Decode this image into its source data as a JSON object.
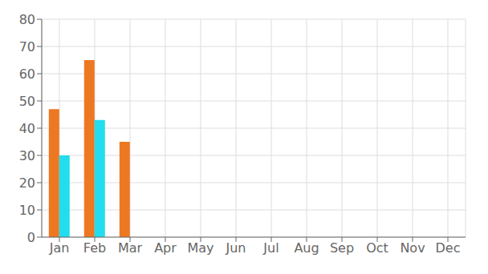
{
  "chart_data": {
    "type": "bar",
    "categories": [
      "Jan",
      "Feb",
      "Mar",
      "Apr",
      "May",
      "Jun",
      "Jul",
      "Aug",
      "Sep",
      "Oct",
      "Nov",
      "Dec"
    ],
    "series": [
      {
        "color": "#ee7722",
        "values": [
          47,
          65,
          35,
          0,
          0,
          0,
          0,
          0,
          0,
          0,
          0,
          0
        ]
      },
      {
        "color": "#22ddee",
        "values": [
          30,
          43,
          0,
          0,
          0,
          0,
          0,
          0,
          0,
          0,
          0,
          0
        ]
      }
    ],
    "ylim": [
      0,
      80
    ],
    "yticks": [
      0,
      10,
      20,
      30,
      40,
      50,
      60,
      70,
      80
    ],
    "grid": true
  }
}
